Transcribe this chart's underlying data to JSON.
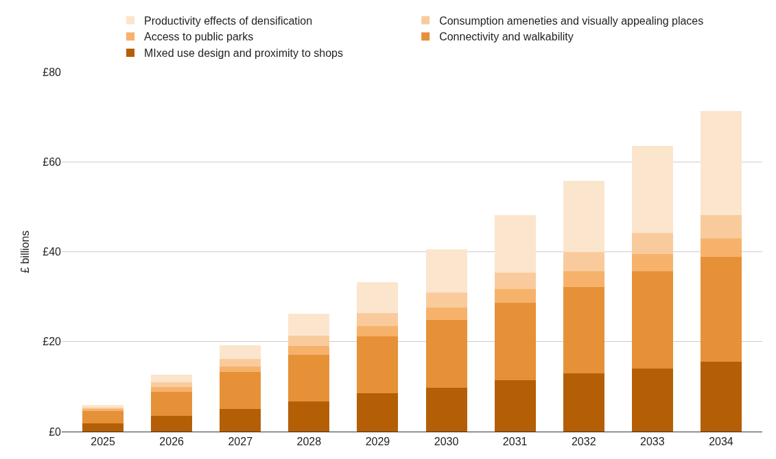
{
  "chart_data": {
    "type": "bar",
    "stacked": true,
    "ylabel": "£ billions",
    "categories": [
      "2025",
      "2026",
      "2027",
      "2028",
      "2029",
      "2030",
      "2031",
      "2032",
      "2033",
      "2034"
    ],
    "series": [
      {
        "name": "MIxed use design and proximity to shops",
        "color": "#b45f06",
        "values": [
          1.9,
          3.5,
          5.1,
          6.7,
          8.5,
          9.8,
          11.5,
          13.0,
          14.0,
          15.5
        ]
      },
      {
        "name": "Connectivity and walkability",
        "color": "#e69138",
        "values": [
          2.6,
          5.4,
          8.1,
          10.4,
          12.7,
          15.1,
          17.2,
          19.2,
          21.7,
          23.4
        ]
      },
      {
        "name": "Access to public parks",
        "color": "#f6b26b",
        "values": [
          0.5,
          1.0,
          1.3,
          1.9,
          2.3,
          2.7,
          3.0,
          3.5,
          3.8,
          4.1
        ]
      },
      {
        "name": "Consumption ameneties and visually appealing places",
        "color": "#f9cb9c",
        "values": [
          0.4,
          1.1,
          1.7,
          2.3,
          2.8,
          3.4,
          3.7,
          4.2,
          4.7,
          5.1
        ]
      },
      {
        "name": "Productivity effects of densification",
        "color": "#fce5cd",
        "values": [
          0.6,
          1.7,
          3.0,
          4.9,
          6.9,
          9.5,
          12.7,
          15.8,
          19.4,
          23.2
        ]
      }
    ],
    "ylim": [
      0,
      80
    ],
    "yticks": [
      {
        "value": 0,
        "label": "£0"
      },
      {
        "value": 20,
        "label": "£20"
      },
      {
        "value": 40,
        "label": "£40"
      },
      {
        "value": 60,
        "label": "£60"
      },
      {
        "value": 80,
        "label": "£80"
      }
    ],
    "grid": "y",
    "legend": "top"
  }
}
